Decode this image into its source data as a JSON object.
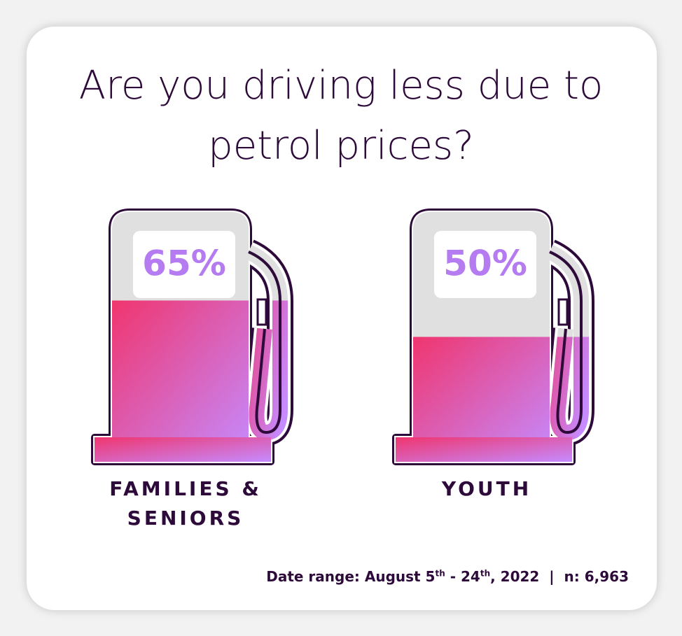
{
  "chart_data": {
    "type": "pictogram",
    "title": "Are you driving less due to petrol prices?",
    "categories": [
      "FAMILIES & SENIORS",
      "YOUTH"
    ],
    "values": [
      65,
      50
    ],
    "value_labels": [
      "65%",
      "50%"
    ],
    "ylim": [
      0,
      100
    ],
    "colors": [
      "#f0356e",
      "#c58bff"
    ],
    "note": [
      "Date range: August 5",
      "th",
      " - 24",
      "th",
      ", 2022",
      "|",
      "n: 6,963"
    ]
  }
}
